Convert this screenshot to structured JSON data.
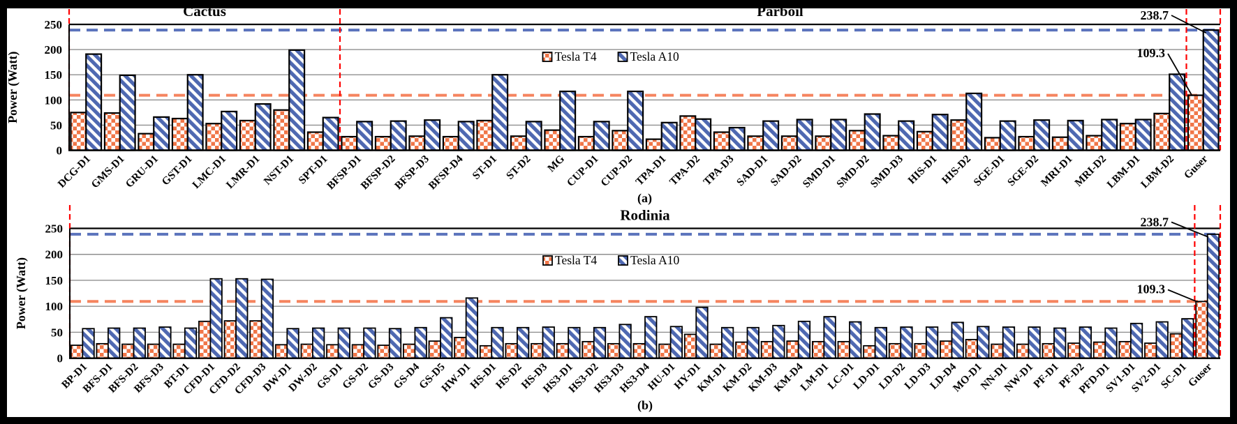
{
  "style": {
    "frame_color": "#000000",
    "panel_bg": "#FFFFFF",
    "t4_color": "#F07648",
    "a10_color": "#4E68B1",
    "t4_ref_color": "#F5845F",
    "a10_ref_color": "#5B73BC",
    "divider_color": "#FF0000",
    "grid_color": "#8F8F8F",
    "axis_color": "#000000"
  },
  "chart_data": [
    {
      "type": "bar",
      "panel_caption": "(a)",
      "ylabel": "Power (Watt)",
      "ylim": [
        0,
        250
      ],
      "yticks": [
        0,
        50,
        100,
        150,
        200,
        250
      ],
      "grid": "horizontal",
      "legend_position": "inside-top-center",
      "group_titles": [
        {
          "label": "Cactus",
          "from": 0,
          "to": 8
        },
        {
          "label": "Parboil",
          "from": 8,
          "to": 34
        }
      ],
      "categories": [
        "DCG-D1",
        "GMS-D1",
        "GRU-D1",
        "GST-D1",
        "LMC-D1",
        "LMR-D1",
        "NST-D1",
        "SPT-D1",
        "BFSP-D1",
        "BFSP-D2",
        "BFSP-D3",
        "BFSP-D4",
        "ST-D1",
        "ST-D2",
        "MG",
        "CUP-D1",
        "CUP-D2",
        "TPA-D1",
        "TPA-D2",
        "TPA-D3",
        "SAD-D1",
        "SAD-D2",
        "SMD-D1",
        "SMD-D2",
        "SMD-D3",
        "HIS-D1",
        "HIS-D2",
        "SGE-D1",
        "SGE-D2",
        "MRI-D1",
        "MRI-D2",
        "LBM-D1",
        "LBM-D2",
        "Guser"
      ],
      "series": [
        {
          "name": "Tesla T4",
          "values": [
            75,
            74,
            33,
            63,
            53,
            59,
            80,
            36,
            27,
            27,
            28,
            27,
            59,
            28,
            40,
            27,
            39,
            22,
            68,
            36,
            28,
            28,
            28,
            39,
            29,
            37,
            60,
            25,
            27,
            26,
            29,
            53,
            73,
            109.3
          ]
        },
        {
          "name": "Tesla A10",
          "values": [
            191,
            149,
            66,
            150,
            77,
            92,
            199,
            65,
            57,
            58,
            60,
            57,
            150,
            57,
            117,
            57,
            117,
            55,
            62,
            45,
            58,
            61,
            61,
            72,
            58,
            71,
            113,
            58,
            60,
            59,
            61,
            61,
            151,
            238.7
          ]
        }
      ],
      "ref_lines": [
        {
          "label": "238.7",
          "value": 238.7,
          "series": "Tesla A10",
          "style": "dashed"
        },
        {
          "label": "109.3",
          "value": 109.3,
          "series": "Tesla T4",
          "style": "dashed"
        }
      ],
      "dividers_at_category_boundaries": [
        0,
        8,
        33,
        34
      ]
    },
    {
      "type": "bar",
      "panel_caption": "(b)",
      "ylabel": "Power (Watt)",
      "ylim": [
        0,
        250
      ],
      "yticks": [
        0,
        50,
        100,
        150,
        200,
        250
      ],
      "grid": "horizontal",
      "legend_position": "inside-top-center",
      "group_titles": [
        {
          "label": "Rodinia",
          "from": 0,
          "to": 45
        }
      ],
      "categories": [
        "BP-D1",
        "BFS-D1",
        "BFS-D2",
        "BFS-D3",
        "BT-D1",
        "CFD-D1",
        "CFD-D2",
        "CFD-D3",
        "DW-D1",
        "DW-D2",
        "GS-D1",
        "GS-D2",
        "GS-D3",
        "GS-D4",
        "GS-D5",
        "HW-D1",
        "HS-D1",
        "HS-D2",
        "HS-D3",
        "HS3-D1",
        "HS3-D2",
        "HS3-D3",
        "HS3-D4",
        "HU-D1",
        "HY-D1",
        "KM-D1",
        "KM-D2",
        "KM-D3",
        "KM-D4",
        "LM-D1",
        "LC-D1",
        "LD-D1",
        "LD-D2",
        "LD-D3",
        "LD-D4",
        "MO-D1",
        "NN-D1",
        "NW-D1",
        "PF-D1",
        "PF-D2",
        "PFD-D1",
        "SV1-D1",
        "SV2-D1",
        "SC-D1",
        "Guser"
      ],
      "series": [
        {
          "name": "Tesla T4",
          "values": [
            25,
            28,
            27,
            27,
            27,
            71,
            72,
            72,
            26,
            27,
            26,
            26,
            25,
            27,
            33,
            40,
            24,
            28,
            28,
            28,
            32,
            28,
            28,
            27,
            46,
            27,
            31,
            32,
            33,
            32,
            32,
            24,
            28,
            28,
            33,
            36,
            27,
            27,
            28,
            29,
            31,
            32,
            29,
            47,
            109.3
          ]
        },
        {
          "name": "Tesla A10",
          "values": [
            57,
            58,
            58,
            60,
            58,
            153,
            153,
            152,
            57,
            58,
            58,
            58,
            57,
            59,
            78,
            116,
            59,
            59,
            60,
            59,
            59,
            65,
            80,
            61,
            98,
            59,
            59,
            63,
            71,
            80,
            70,
            59,
            60,
            60,
            69,
            61,
            60,
            60,
            58,
            60,
            58,
            67,
            70,
            76,
            238.7
          ]
        }
      ],
      "ref_lines": [
        {
          "label": "238.7",
          "value": 238.7,
          "series": "Tesla A10",
          "style": "dashed"
        },
        {
          "label": "109.3",
          "value": 109.3,
          "series": "Tesla T4",
          "style": "dashed"
        }
      ],
      "dividers_at_category_boundaries": [
        0,
        44,
        45
      ]
    }
  ]
}
